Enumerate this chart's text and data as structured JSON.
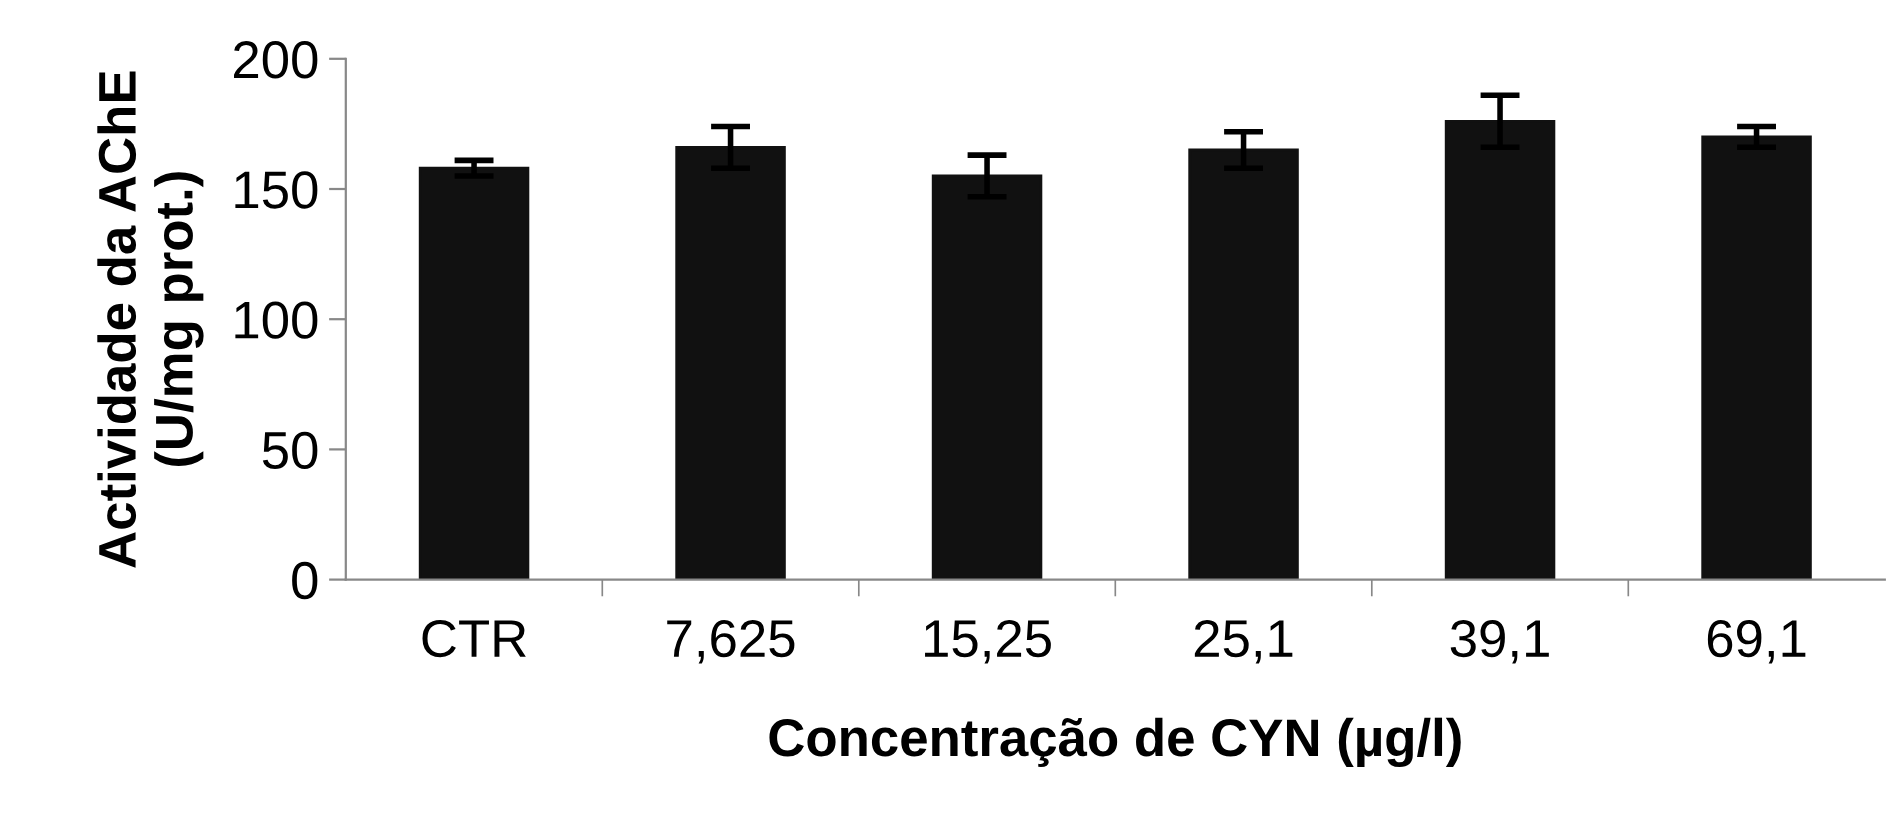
{
  "chart_data": {
    "type": "bar",
    "xlabel": "Concentração de CYN (µg/l)",
    "ylabel": "Actividade da AChE\n(U/mg prot.)",
    "categories": [
      "CTR",
      "7,625",
      "15,25",
      "25,1",
      "39,1",
      "69,1"
    ],
    "values": [
      158,
      166,
      155,
      165,
      176,
      170
    ],
    "errors": [
      3,
      8,
      8,
      7,
      10,
      4
    ],
    "color": "#111111",
    "ylim": [
      0,
      200
    ],
    "yticks": [
      0,
      50,
      100,
      150,
      200
    ],
    "grid": false
  }
}
